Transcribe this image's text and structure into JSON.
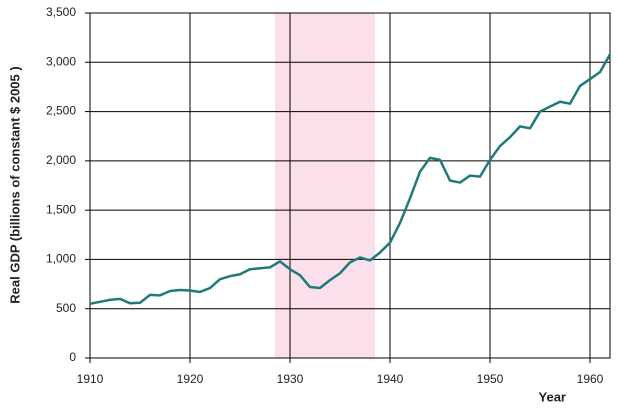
{
  "chart_data": {
    "type": "line",
    "x_label": "Year",
    "y_label": "Real GDP (billions of constant $ 2005 )",
    "x": [
      1910,
      1911,
      1912,
      1913,
      1914,
      1915,
      1916,
      1917,
      1918,
      1919,
      1920,
      1921,
      1922,
      1923,
      1924,
      1925,
      1926,
      1927,
      1928,
      1929,
      1930,
      1931,
      1932,
      1933,
      1934,
      1935,
      1936,
      1937,
      1938,
      1939,
      1940,
      1941,
      1942,
      1943,
      1944,
      1945,
      1946,
      1947,
      1948,
      1949,
      1950,
      1951,
      1952,
      1953,
      1954,
      1955,
      1956,
      1957,
      1958,
      1959,
      1960,
      1961,
      1962
    ],
    "series": [
      {
        "name": "Real GDP",
        "color": "#1f7a7a",
        "values": [
          550,
          570,
          590,
          600,
          555,
          560,
          640,
          635,
          680,
          690,
          685,
          670,
          710,
          800,
          830,
          850,
          900,
          910,
          920,
          980,
          900,
          840,
          720,
          710,
          790,
          860,
          970,
          1020,
          990,
          1070,
          1170,
          1370,
          1620,
          1890,
          2030,
          2010,
          1800,
          1780,
          1850,
          1840,
          2010,
          2150,
          2240,
          2350,
          2330,
          2500,
          2550,
          2600,
          2580,
          2760,
          2830,
          2900,
          3080
        ]
      }
    ],
    "highlight_range": [
      1928.5,
      1938.5
    ],
    "highlight_color": "#fbe0ec",
    "xlim": [
      1910,
      1962
    ],
    "xticks": [
      1910,
      1920,
      1930,
      1940,
      1950,
      1960
    ],
    "ylim": [
      0,
      3500
    ],
    "yticks": [
      0,
      500,
      {
        "value": 1000,
        "label": "1,000"
      },
      {
        "value": 1500,
        "label": "1,500"
      },
      {
        "value": 2000,
        "label": "2,000"
      },
      {
        "value": 2500,
        "label": "2,500"
      },
      {
        "value": 3000,
        "label": "3,000"
      },
      {
        "value": 3500,
        "label": "3,500"
      }
    ],
    "grid": true
  }
}
